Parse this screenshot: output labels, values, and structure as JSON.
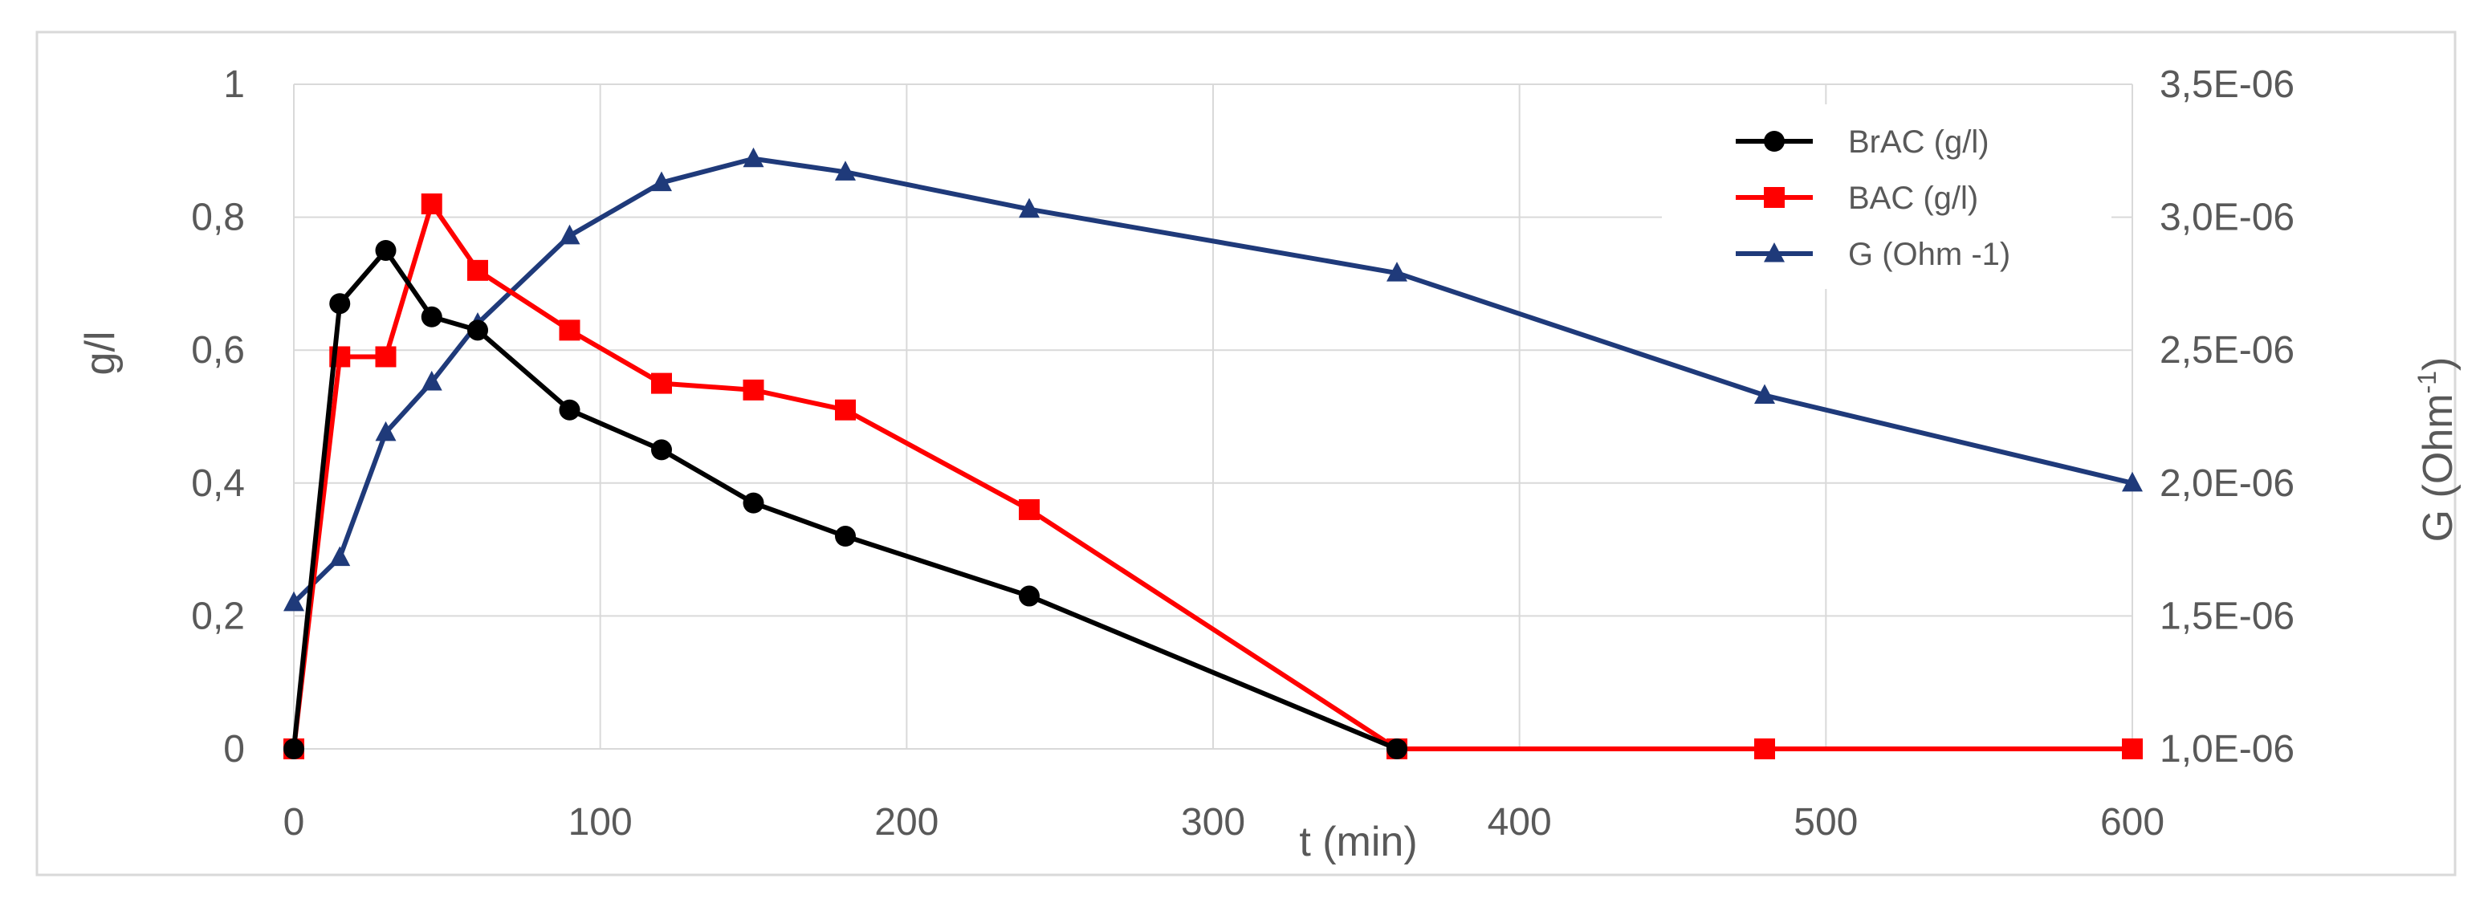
{
  "chart_data": {
    "type": "line",
    "title": "",
    "xlabel": "t (min)",
    "ylabel": "g/l",
    "y2label": "G (Ohm",
    "y2label_sup": "-1",
    "y2label_end": ")",
    "xlim": [
      0,
      600
    ],
    "ylim": [
      0,
      1
    ],
    "y2lim": [
      1e-06,
      3.5e-06
    ],
    "grid": true,
    "legend_position": "top-right",
    "x_ticks": [
      0,
      100,
      200,
      300,
      400,
      500,
      600
    ],
    "x_tick_labels": [
      "0",
      "100",
      "200",
      "300",
      "400",
      "500",
      "600"
    ],
    "y_ticks": [
      0,
      0.2,
      0.4,
      0.6,
      0.8,
      1
    ],
    "y_tick_labels": [
      "0",
      "0,2",
      "0,4",
      "0,6",
      "0,8",
      "1"
    ],
    "y2_ticks": [
      1e-06,
      1.5e-06,
      2e-06,
      2.5e-06,
      3e-06,
      3.5e-06
    ],
    "y2_tick_labels": [
      "1,0E-06",
      "1,5E-06",
      "2,0E-06",
      "2,5E-06",
      "3,0E-06",
      "3,5E-06"
    ],
    "series": [
      {
        "name": "BrAC (g/l)",
        "axis": "left",
        "color": "#000000",
        "marker": "circle",
        "x": [
          0,
          15,
          30,
          45,
          60,
          90,
          120,
          150,
          180,
          240,
          360
        ],
        "y": [
          0,
          0.67,
          0.75,
          0.65,
          0.63,
          0.51,
          0.45,
          0.37,
          0.32,
          0.23,
          0
        ]
      },
      {
        "name": "BAC (g/l)",
        "axis": "left",
        "color": "#ff0000",
        "marker": "square",
        "x": [
          0,
          15,
          30,
          45,
          60,
          90,
          120,
          150,
          180,
          240,
          360,
          480,
          600
        ],
        "y": [
          0,
          0.59,
          0.59,
          0.82,
          0.72,
          0.63,
          0.55,
          0.54,
          0.51,
          0.36,
          0,
          0,
          0
        ]
      },
      {
        "name": "G (Ohm -1)",
        "axis": "right",
        "color": "#1f3a7a",
        "marker": "triangle",
        "x": [
          0,
          15,
          30,
          45,
          60,
          90,
          120,
          150,
          180,
          240,
          360,
          480,
          600
        ],
        "y": [
          1.55e-06,
          1.72e-06,
          2.19e-06,
          2.38e-06,
          2.6e-06,
          2.93e-06,
          3.13e-06,
          3.22e-06,
          3.17e-06,
          3.03e-06,
          2.79e-06,
          2.33e-06,
          2e-06
        ]
      }
    ]
  }
}
